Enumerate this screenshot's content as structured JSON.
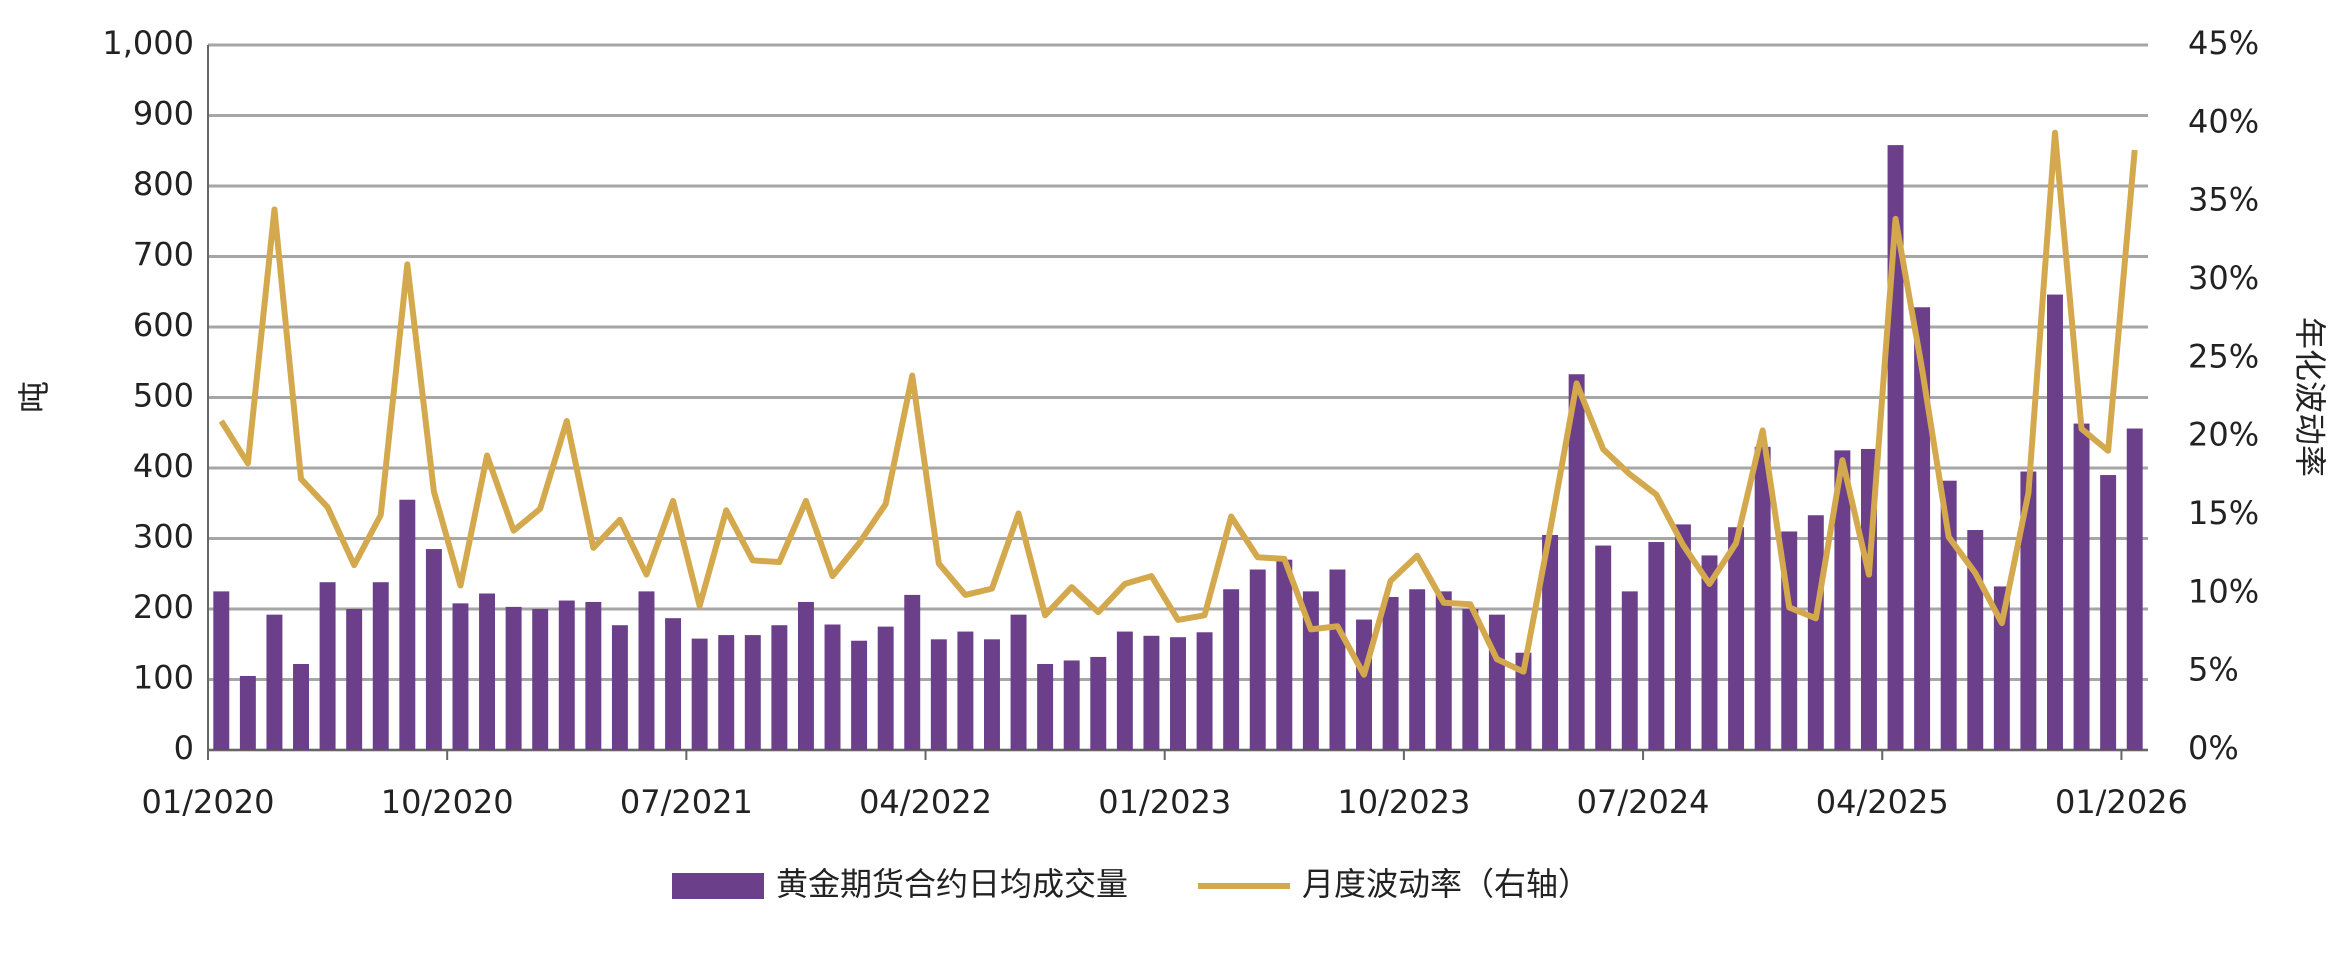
{
  "chart_data": {
    "type": "bar-line",
    "y_label": "吨",
    "y2_label": "年化波动率",
    "categories": [
      "01/2020",
      null,
      null,
      null,
      null,
      null,
      null,
      null,
      null,
      "10/2020",
      null,
      null,
      null,
      null,
      null,
      null,
      null,
      null,
      "07/2021",
      null,
      null,
      null,
      null,
      null,
      null,
      null,
      null,
      "04/2022",
      null,
      null,
      null,
      null,
      null,
      null,
      null,
      null,
      "01/2023",
      null,
      null,
      null,
      null,
      null,
      null,
      null,
      null,
      "10/2023",
      null,
      null,
      null,
      null,
      null,
      null,
      null,
      null,
      "07/2024",
      null,
      null,
      null,
      null,
      null,
      null,
      null,
      null,
      "04/2025",
      null,
      null,
      null,
      null,
      null,
      null,
      null,
      null,
      "01/2026"
    ],
    "series": [
      {
        "name": "黄金期货合约日均成交量",
        "type": "bar",
        "color": "#6b3f8a",
        "values": [
          225,
          105,
          192,
          122,
          238,
          200,
          238,
          355,
          285,
          208,
          222,
          203,
          200,
          212,
          210,
          177,
          225,
          187,
          158,
          163,
          163,
          177,
          210,
          178,
          155,
          175,
          220,
          157,
          168,
          157,
          192,
          122,
          127,
          132,
          168,
          162,
          160,
          167,
          228,
          256,
          270,
          225,
          256,
          185,
          217,
          228,
          225,
          200,
          192,
          138,
          305,
          533,
          290,
          225,
          295,
          320,
          276,
          316,
          430,
          310,
          333,
          425,
          427,
          858,
          628,
          382,
          312,
          232,
          395,
          646,
          463,
          390,
          456
        ]
      },
      {
        "name": "月度波动率（右轴）",
        "type": "line",
        "axis": "y2",
        "color": "#d4a94e",
        "values": [
          21,
          18.3,
          34.5,
          17.3,
          15.5,
          11.8,
          15,
          31,
          16.5,
          10.5,
          18.8,
          14,
          15.4,
          21,
          12.9,
          14.7,
          11.2,
          15.9,
          9.2,
          15.3,
          12.1,
          12,
          15.9,
          11.1,
          13.2,
          15.7,
          23.9,
          11.9,
          9.9,
          10.3,
          15.1,
          8.6,
          10.4,
          8.8,
          10.6,
          11.1,
          8.3,
          8.6,
          14.9,
          12.3,
          12.2,
          7.7,
          7.9,
          4.8,
          10.8,
          12.4,
          9.4,
          9.3,
          5.8,
          5,
          14,
          23.4,
          19.2,
          17.6,
          16.3,
          13.1,
          10.6,
          13.2,
          20.4,
          9.1,
          8.4,
          18.5,
          11.2,
          33.9,
          24.3,
          13.6,
          11.3,
          8.1,
          16.4,
          39.4,
          20.5,
          19.1,
          38.3
        ]
      }
    ],
    "ylim": [
      0,
      1000
    ],
    "yticks": [
      0,
      100,
      200,
      300,
      400,
      500,
      600,
      700,
      800,
      900,
      {
        "value": 1000,
        "label": "1,000"
      }
    ],
    "y2lim": [
      0,
      45
    ],
    "y2ticks": [
      {
        "value": 0,
        "label": "0%"
      },
      {
        "value": 5,
        "label": "5%"
      },
      {
        "value": 10,
        "label": "10%"
      },
      {
        "value": 15,
        "label": "15%"
      },
      {
        "value": 20,
        "label": "20%"
      },
      {
        "value": 25,
        "label": "25%"
      },
      {
        "value": 30,
        "label": "30%"
      },
      {
        "value": 35,
        "label": "35%"
      },
      {
        "value": 40,
        "label": "40%"
      },
      {
        "value": 45,
        "label": "45%"
      }
    ],
    "grid": true,
    "legend": "bottom"
  }
}
